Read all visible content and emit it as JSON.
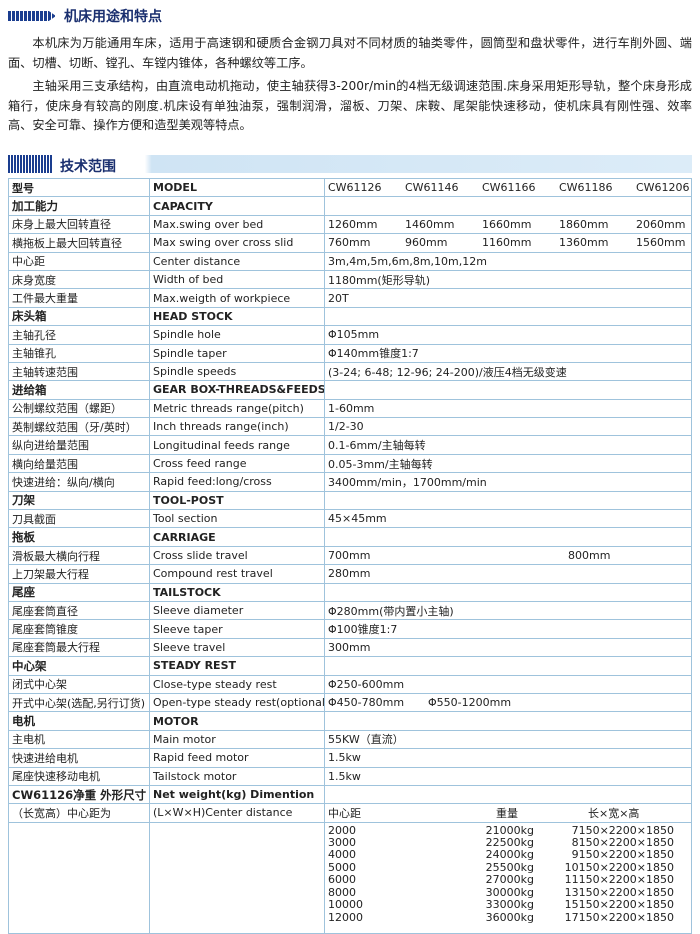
{
  "header": {
    "title": "机床用途和特点"
  },
  "intro": {
    "paragraphs": [
      "本机床为万能通用车床，适用于高速钢和硬质合金钢刀具对不同材质的轴类零件，圆筒型和盘状零件，进行车削外圆、端面、切槽、切断、镗孔、车镗内锥体，各种螺纹等工序。",
      "主轴采用三支承结构，由直流电动机拖动，使主轴获得3-200r/min的4档无级调速范围.床身采用矩形导轨，整个床身形成箱行，使床身有较高的刚度.机床设有单独油泵，强制润滑，溜板、刀架、床鞍、尾架能快速移动，使机床具有刚性强、效率高、安全可靠、操作方便和造型美观等特点。"
    ]
  },
  "spec": {
    "title": "技术范围",
    "rows": [
      {
        "cn": "型号",
        "en": "MODEL",
        "vals": [
          "CW61126",
          "CW61146",
          "CW61166",
          "CW61186",
          "CW61206"
        ]
      },
      {
        "cn": "加工能力",
        "en": "CAPACITY"
      },
      {
        "cn": "床身上最大回转直径",
        "en": "Max.swing over bed",
        "vals": [
          "1260mm",
          "1460mm",
          "1660mm",
          "1860mm",
          "2060mm"
        ]
      },
      {
        "cn": "横拖板上最大回转直径",
        "en": "Max swing over cross slid",
        "vals": [
          "760mm",
          "960mm",
          "1160mm",
          "1360mm",
          "1560mm"
        ]
      },
      {
        "cn": "中心距",
        "en": "Center distance",
        "vals": [
          "3m,4m,5m,6m,8m,10m,12m"
        ]
      },
      {
        "cn": "床身宽度",
        "en": "Width of bed",
        "vals": [
          "1180mm(矩形导轨)"
        ]
      },
      {
        "cn": "工件最大重量",
        "en": "Max.weigth of workpiece",
        "vals": [
          "20T"
        ]
      },
      {
        "cn": "床头箱",
        "en": "HEAD STOCK"
      },
      {
        "cn": "主轴孔径",
        "en": "Spindle hole",
        "vals": [
          "Φ105mm"
        ]
      },
      {
        "cn": "主轴锥孔",
        "en": "Spindle taper",
        "vals": [
          "Φ140mm锥度1:7"
        ]
      },
      {
        "cn": "主轴转速范围",
        "en": "Spindle speeds",
        "vals": [
          "(3-24; 6-48; 12-96; 24-200)/液压4档无级变速"
        ]
      },
      {
        "cn": "进给箱",
        "en": "GEAR BOX-THREADS&FEEDS"
      },
      {
        "cn": "公制螺纹范围（螺距）",
        "en": "Metric threads range(pitch)",
        "vals": [
          "1-60mm"
        ]
      },
      {
        "cn": "英制螺纹范围（牙/英时）",
        "en": "Inch threads range(inch)",
        "vals": [
          "1/2-30"
        ]
      },
      {
        "cn": "纵向进给量范围",
        "en": "Longitudinal feeds range",
        "vals": [
          "0.1-6mm/主轴每转"
        ]
      },
      {
        "cn": "横向给量范围",
        "en": "Cross feed range",
        "vals": [
          "0.05-3mm/主轴每转"
        ]
      },
      {
        "cn": "快速进给：纵向/横向",
        "en": "Rapid feed:long/cross",
        "vals": [
          "3400mm/min，1700mm/min"
        ]
      },
      {
        "cn": "刀架",
        "en": "TOOL-POST"
      },
      {
        "cn": "刀具截面",
        "en": "Tool section",
        "vals": [
          "45×45mm"
        ]
      },
      {
        "cn": "拖板",
        "en": "CARRIAGE"
      },
      {
        "cn": "滑板最大横向行程",
        "en": "Cross slide travel",
        "vals": [
          "700mm",
          "800mm"
        ]
      },
      {
        "cn": "上刀架最大行程",
        "en": "Compound rest travel",
        "vals": [
          "280mm"
        ]
      },
      {
        "cn": "尾座",
        "en": "TAILSTOCK"
      },
      {
        "cn": "尾座套筒直径",
        "en": "Sleeve diameter",
        "vals": [
          "Φ280mm(带内置小主轴)"
        ]
      },
      {
        "cn": "尾座套筒锥度",
        "en": "Sleeve taper",
        "vals": [
          "Φ100锥度1:7"
        ]
      },
      {
        "cn": "尾座套筒最大行程",
        "en": "Sleeve travel",
        "vals": [
          "300mm"
        ]
      },
      {
        "cn": "中心架",
        "en": "STEADY REST"
      },
      {
        "cn": "闭式中心架",
        "en": "Close-type steady rest",
        "vals": [
          "Φ250-600mm"
        ]
      },
      {
        "cn": "开式中心架(选配,另行订货)",
        "en": "Open-type steady rest(optional)",
        "vals": [
          "Φ450-780mm",
          "Φ550-1200mm"
        ]
      },
      {
        "cn": "电机",
        "en": "MOTOR"
      },
      {
        "cn": "主电机",
        "en": "Main motor",
        "vals": [
          "55KW（直流）"
        ]
      },
      {
        "cn": "快速进给电机",
        "en": "Rapid feed motor",
        "vals": [
          "1.5kw"
        ]
      },
      {
        "cn": "尾座快速移动电机",
        "en": "Tailstock motor",
        "vals": [
          "1.5kw"
        ]
      },
      {
        "cn": "CW61126净重 外形尺寸",
        "en": "Net weight(kg) Dimention"
      },
      {
        "cn": "（长宽高）中心距为",
        "en": "(L×W×H)Center distance",
        "vals": [
          "中心距",
          "重量",
          "长×宽×高"
        ]
      }
    ],
    "dims": [
      [
        "2000",
        "21000kg",
        "7150×2200×1850"
      ],
      [
        "3000",
        "22500kg",
        "8150×2200×1850"
      ],
      [
        "4000",
        "24000kg",
        "9150×2200×1850"
      ],
      [
        "5000",
        "25500kg",
        "10150×2200×1850"
      ],
      [
        "6000",
        "27000kg",
        "11150×2200×1850"
      ],
      [
        "8000",
        "30000kg",
        "13150×2200×1850"
      ],
      [
        "10000",
        "33000kg",
        "15150×2200×1850"
      ],
      [
        "12000",
        "36000kg",
        "17150×2200×1850"
      ]
    ]
  }
}
